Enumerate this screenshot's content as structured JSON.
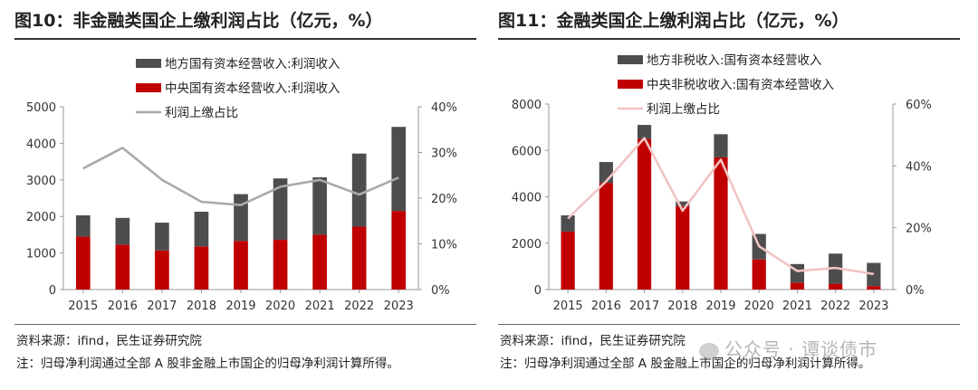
{
  "watermark": "公众号 · 谭谈债市",
  "chart_data": [
    {
      "type": "bar",
      "title": "图10：非金融类国企上缴利润占比（亿元，%）",
      "source": "资料来源：ifind，民生证券研究院",
      "note": "注：归母净利润通过全部 A 股非金融上市国企的归母净利润计算所得。",
      "categories": [
        "2015",
        "2016",
        "2017",
        "2018",
        "2019",
        "2020",
        "2021",
        "2022",
        "2023"
      ],
      "ylim": [
        0,
        5000
      ],
      "yticks": [
        0,
        1000,
        2000,
        3000,
        4000,
        5000
      ],
      "y2lim": [
        0,
        40
      ],
      "y2ticks": [
        "0%",
        "10%",
        "20%",
        "30%",
        "40%"
      ],
      "legend": [
        "地方国有资本经营收入:利润收入",
        "中央国有资本经营收入:利润收入",
        "利润上缴占比"
      ],
      "colors": {
        "local": "#4d4d4d",
        "central": "#c00000",
        "line": "#aaaaaa"
      },
      "series": [
        {
          "name": "地方国有资本经营收入:利润收入",
          "values": [
            580,
            730,
            760,
            950,
            1280,
            1680,
            1570,
            2000,
            2300
          ]
        },
        {
          "name": "中央国有资本经营收入:利润收入",
          "values": [
            1450,
            1230,
            1070,
            1180,
            1330,
            1360,
            1500,
            1720,
            2150
          ]
        },
        {
          "name": "利润上缴占比",
          "axis": "right",
          "values": [
            26.5,
            31,
            24,
            19.2,
            18.5,
            22.5,
            24,
            20.8,
            24.5
          ]
        }
      ]
    },
    {
      "type": "bar",
      "title": "图11：金融类国企上缴利润占比（亿元，%）",
      "source": "资料来源：ifind，民生证券研究院",
      "note": "注：归母净利润通过全部 A 股金融上市国企的归母净利润计算所得。",
      "categories": [
        "2015",
        "2016",
        "2017",
        "2018",
        "2019",
        "2020",
        "2021",
        "2022",
        "2023"
      ],
      "ylim": [
        0,
        8000
      ],
      "yticks": [
        0,
        2000,
        4000,
        6000,
        8000
      ],
      "y2lim": [
        0,
        60
      ],
      "y2ticks": [
        "0%",
        "20%",
        "40%",
        "60%"
      ],
      "legend": [
        "地方非税收入:国有资本经营收入",
        "中央非税收收入:国有资本经营收入",
        "利润上缴占比"
      ],
      "colors": {
        "local": "#4d4d4d",
        "central": "#c00000",
        "line": "#f2c4c4"
      },
      "series": [
        {
          "name": "地方非税收入:国有资本经营收入",
          "values": [
            700,
            900,
            600,
            200,
            1000,
            1100,
            800,
            1300,
            1000
          ]
        },
        {
          "name": "中央非税收收入:国有资本经营收入",
          "values": [
            2500,
            4600,
            6500,
            3600,
            5700,
            1300,
            300,
            250,
            150
          ]
        },
        {
          "name": "利润上缴占比",
          "axis": "right",
          "values": [
            23,
            35,
            49,
            25.5,
            42,
            14,
            6,
            7,
            5
          ]
        }
      ]
    }
  ]
}
